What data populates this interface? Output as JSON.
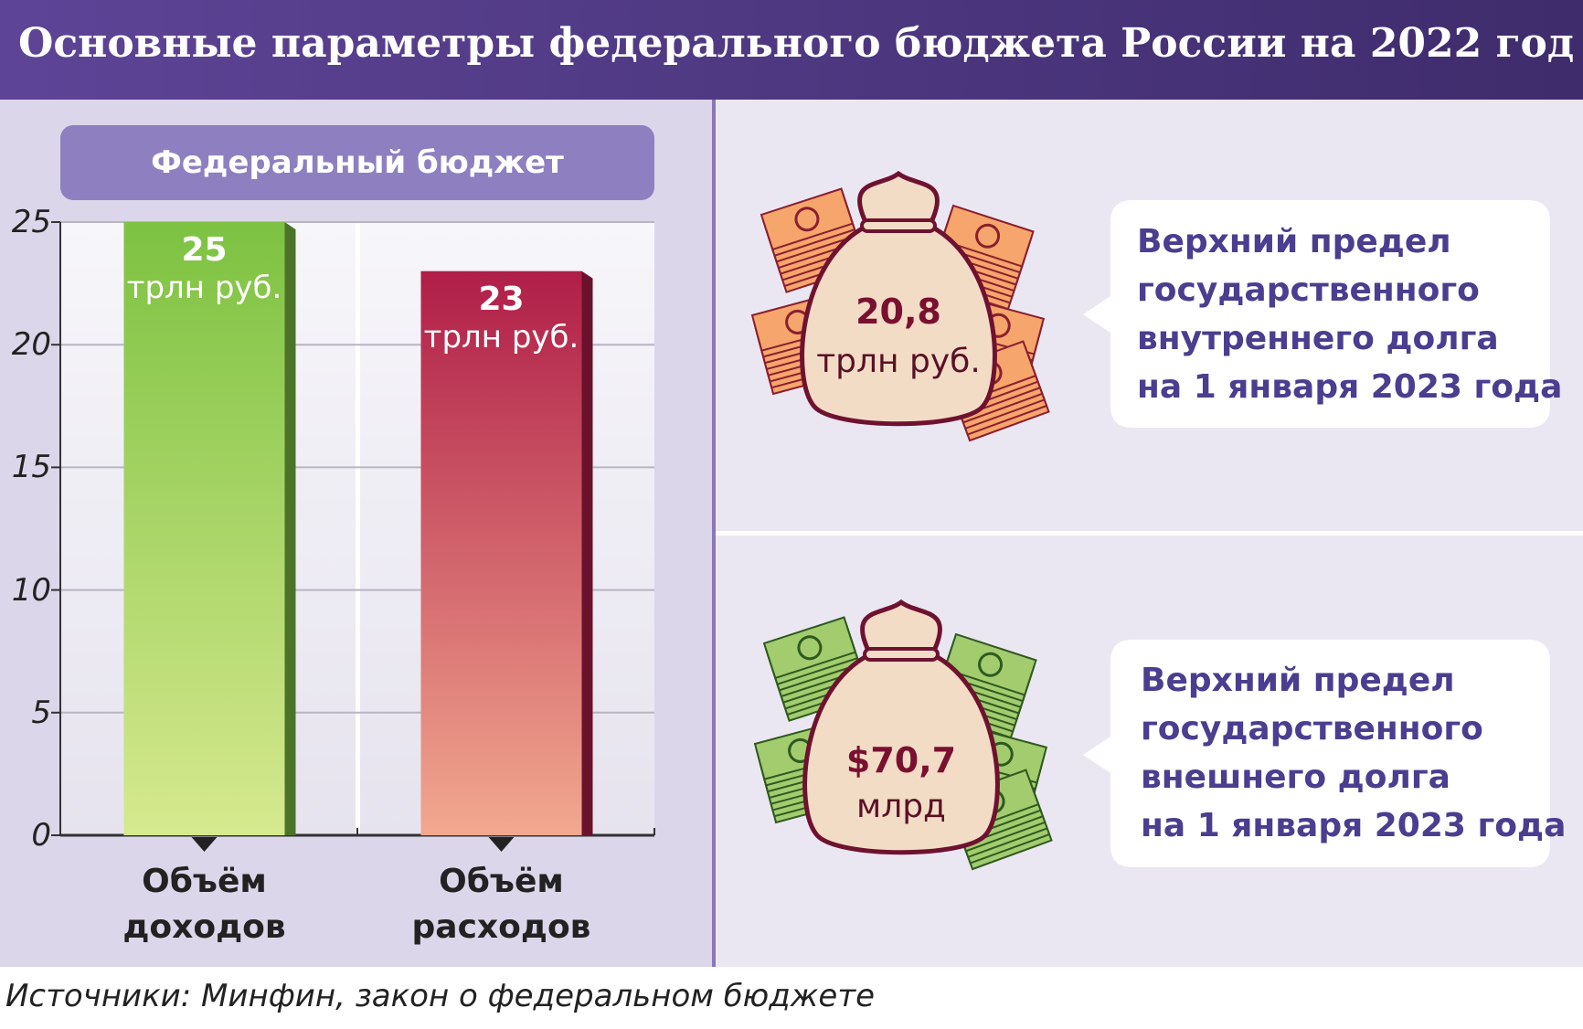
{
  "header": {
    "title": "Основные параметры федерального бюджета России на 2022 год"
  },
  "chart_data": {
    "type": "bar",
    "title": "Федеральный бюджет",
    "categories": [
      "Объём доходов",
      "Объём расходов"
    ],
    "values": [
      25,
      23
    ],
    "unit": "трлн руб.",
    "colors": [
      "#7dc242",
      "#b01e48"
    ],
    "gradient_end_colors": [
      "#d6e98e",
      "#f2a88f"
    ],
    "ylim": [
      0,
      25
    ],
    "yticks": [
      0,
      5,
      10,
      15,
      20,
      25
    ],
    "grid": true
  },
  "panels": [
    {
      "amount": "20,8",
      "unit": "трлн руб.",
      "currency": "ruble",
      "text_lines": [
        "Верхний предел",
        "государственного",
        "внутреннего долга",
        "на 1 января 2023 года"
      ]
    },
    {
      "amount": "$70,7",
      "unit": "млрд",
      "currency": "dollar",
      "text_lines": [
        "Верхний предел",
        "государственного",
        "внешнего долга",
        "на 1 января 2023 года"
      ]
    }
  ],
  "source": "Источники: Минфин, закон о федеральном бюджете"
}
